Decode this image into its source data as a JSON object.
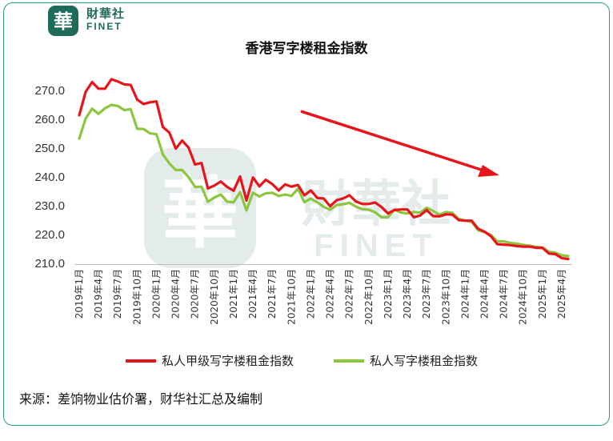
{
  "brand": {
    "logo_char": "華",
    "name_cn": "財華社",
    "name_en": "FINET"
  },
  "source": "来源：差饷物业估价署，财华社汇总及编制",
  "colors": {
    "series_a": "#e8141b",
    "series_b": "#8cc63f",
    "frame": "#2f9a84",
    "arrow": "#e8141b",
    "brand": "#1f6b5a"
  },
  "chart_data": {
    "type": "line",
    "title": "香港写字楼租金指数",
    "xlabel": "",
    "ylabel": "",
    "ylim": [
      210,
      275
    ],
    "yticks": [
      "210.0",
      "220.0",
      "230.0",
      "240.0",
      "250.0",
      "260.0",
      "270.0"
    ],
    "xtick_labels": [
      "2019年1月",
      "2019年4月",
      "2019年7月",
      "2019年10月",
      "2020年1月",
      "2020年4月",
      "2020年7月",
      "2020年10月",
      "2021年1月",
      "2021年4月",
      "2021年7月",
      "2021年10月",
      "2022年1月",
      "2022年4月",
      "2022年7月",
      "2022年10月",
      "2023年1月",
      "2023年4月",
      "2023年7月",
      "2023年10月",
      "2024年1月",
      "2024年4月",
      "2024年7月",
      "2024年10月",
      "2025年1月",
      "2025年4月"
    ],
    "legend_position": "bottom",
    "grid": false,
    "series": [
      {
        "name": "私人甲级写字楼租金指数",
        "values": [
          261.4,
          269.5,
          272.9,
          270.6,
          270.6,
          273.9,
          273.1,
          272.1,
          271.9,
          266.8,
          265.3,
          265.9,
          266.2,
          257.3,
          255.4,
          249.8,
          252.6,
          250.1,
          244.3,
          244.8,
          236.0,
          237.0,
          238.4,
          236.5,
          235.2,
          240.1,
          231.8,
          239.8,
          236.7,
          239.0,
          237.5,
          235.3,
          237.4,
          236.6,
          237.2,
          233.6,
          235.3,
          232.7,
          232.5,
          229.8,
          231.9,
          232.5,
          233.6,
          231.5,
          230.6,
          230.6,
          231.1,
          229.5,
          227.3,
          228.5,
          228.7,
          228.7,
          226.0,
          226.6,
          228.5,
          226.4,
          226.3,
          227.0,
          226.9,
          225.0,
          224.8,
          224.8,
          222.0,
          221.0,
          219.4,
          216.6,
          216.5,
          216.3,
          216.0,
          215.8,
          215.8,
          215.4,
          215.4,
          213.4,
          213.2,
          211.8,
          211.5
        ]
      },
      {
        "name": "私人写字楼租金指数",
        "values": [
          253.3,
          260.2,
          263.7,
          261.9,
          263.8,
          265.0,
          264.6,
          263.2,
          263.5,
          256.7,
          256.6,
          255.1,
          254.8,
          247.8,
          244.7,
          242.4,
          242.4,
          239.9,
          236.5,
          236.6,
          231.4,
          232.8,
          233.9,
          231.4,
          231.2,
          234.7,
          228.4,
          234.5,
          233.2,
          234.3,
          234.5,
          233.4,
          233.9,
          233.4,
          235.9,
          231.2,
          232.5,
          231.2,
          229.6,
          228.6,
          230.2,
          230.5,
          231.0,
          229.7,
          228.8,
          228.6,
          227.7,
          226.0,
          226.0,
          228.6,
          227.6,
          227.3,
          227.8,
          227.6,
          229.3,
          228.2,
          226.9,
          227.8,
          227.5,
          225.4,
          224.8,
          224.4,
          221.5,
          220.8,
          219.8,
          217.6,
          217.6,
          217.1,
          216.8,
          216.4,
          216.1,
          215.7,
          215.5,
          214.0,
          213.7,
          212.8,
          212.5
        ]
      }
    ]
  }
}
